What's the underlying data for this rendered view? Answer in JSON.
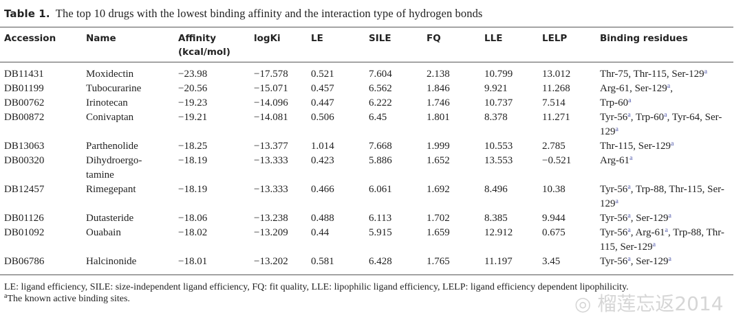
{
  "caption": {
    "label": "Table 1.",
    "text": "The top 10 drugs with the lowest binding affinity and the interaction type of hydrogen bonds"
  },
  "headers": [
    "Accession",
    "Name",
    "Affinity (kcal/mol)",
    "logKi",
    "LE",
    "SILE",
    "FQ",
    "LLE",
    "LELP",
    "Binding residues"
  ],
  "rows": [
    {
      "acc": "DB11431",
      "name": "Moxidectin",
      "aff": "−23.98",
      "logki": "−17.578",
      "le": "0.521",
      "sile": "7.604",
      "fq": "2.138",
      "lle": "10.799",
      "lelp": "13.012",
      "res": [
        {
          "t": "Thr-75",
          "s": ""
        },
        {
          "t": "Thr-115",
          "s": ""
        },
        {
          "t": "Ser-129",
          "s": "a"
        }
      ]
    },
    {
      "acc": "DB01199",
      "name": "Tubocurarine",
      "aff": "−20.56",
      "logki": "−15.071",
      "le": "0.457",
      "sile": "6.562",
      "fq": "1.846",
      "lle": "9.921",
      "lelp": "11.268",
      "res": [
        {
          "t": "Arg-61",
          "s": ""
        },
        {
          "t": "Ser-129",
          "s": "a"
        }
      ],
      "trail": ","
    },
    {
      "acc": "DB00762",
      "name": "Irinotecan",
      "aff": "−19.23",
      "logki": "−14.096",
      "le": "0.447",
      "sile": "6.222",
      "fq": "1.746",
      "lle": "10.737",
      "lelp": "7.514",
      "res": [
        {
          "t": "Trp-60",
          "s": "a"
        }
      ]
    },
    {
      "acc": "DB00872",
      "name": "Conivaptan",
      "aff": "−19.21",
      "logki": "−14.081",
      "le": "0.506",
      "sile": "6.45",
      "fq": "1.801",
      "lle": "8.378",
      "lelp": "11.271",
      "res": [
        {
          "t": "Tyr-56",
          "s": "a"
        },
        {
          "t": "Trp-60",
          "s": "a"
        },
        {
          "t": "Tyr-64",
          "s": ""
        },
        {
          "t": "Ser-129",
          "s": "a"
        }
      ]
    },
    {
      "acc": "DB13063",
      "name": "Parthenolide",
      "aff": "−18.25",
      "logki": "−13.377",
      "le": "1.014",
      "sile": "7.668",
      "fq": "1.999",
      "lle": "10.553",
      "lelp": "2.785",
      "res": [
        {
          "t": "Thr-115",
          "s": ""
        },
        {
          "t": "Ser-129",
          "s": "a"
        }
      ]
    },
    {
      "acc": "DB00320",
      "name": "Dihydroergo-tamine",
      "aff": "−18.19",
      "logki": "−13.333",
      "le": "0.423",
      "sile": "5.886",
      "fq": "1.652",
      "lle": "13.553",
      "lelp": "−0.521",
      "res": [
        {
          "t": "Arg-61",
          "s": "a"
        }
      ]
    },
    {
      "acc": "DB12457",
      "name": "Rimegepant",
      "aff": "−18.19",
      "logki": "−13.333",
      "le": "0.466",
      "sile": "6.061",
      "fq": "1.692",
      "lle": "8.496",
      "lelp": "10.38",
      "res": [
        {
          "t": "Tyr-56",
          "s": "a"
        },
        {
          "t": "Trp-88",
          "s": ""
        },
        {
          "t": "Thr-115",
          "s": ""
        },
        {
          "t": "Ser-129",
          "s": "a"
        }
      ]
    },
    {
      "acc": "DB01126",
      "name": "Dutasteride",
      "aff": "−18.06",
      "logki": "−13.238",
      "le": "0.488",
      "sile": "6.113",
      "fq": "1.702",
      "lle": "8.385",
      "lelp": "9.944",
      "res": [
        {
          "t": "Tyr-56",
          "s": "a"
        },
        {
          "t": "Ser-129",
          "s": "a"
        }
      ]
    },
    {
      "acc": "DB01092",
      "name": "Ouabain",
      "aff": "−18.02",
      "logki": "−13.209",
      "le": "0.44",
      "sile": "5.915",
      "fq": "1.659",
      "lle": "12.912",
      "lelp": "0.675",
      "res": [
        {
          "t": "Tyr-56",
          "s": "a"
        },
        {
          "t": "Arg-61",
          "s": "a"
        },
        {
          "t": "Trp-88",
          "s": ""
        },
        {
          "t": "Thr-115",
          "s": ""
        },
        {
          "t": "Ser-129",
          "s": "a"
        }
      ]
    },
    {
      "acc": "DB06786",
      "name": "Halcinonide",
      "aff": "−18.01",
      "logki": "−13.202",
      "le": "0.581",
      "sile": "6.428",
      "fq": "1.765",
      "lle": "11.197",
      "lelp": "3.45",
      "res": [
        {
          "t": "Tyr-56",
          "s": "a"
        },
        {
          "t": "Ser-129",
          "s": "a"
        }
      ]
    }
  ],
  "footnotes": {
    "abbrev": "LE: ligand efficiency, SILE: size-independent ligand efficiency, FQ: fit quality, LLE: lipophilic ligand efficiency, LELP: ligand efficiency dependent lipophilicity.",
    "sup": "a",
    "note": "The known active binding sites."
  },
  "watermark": "榴莲忘返2014",
  "colors": {
    "superscript": "#5a62b0",
    "rule": "#555555"
  }
}
